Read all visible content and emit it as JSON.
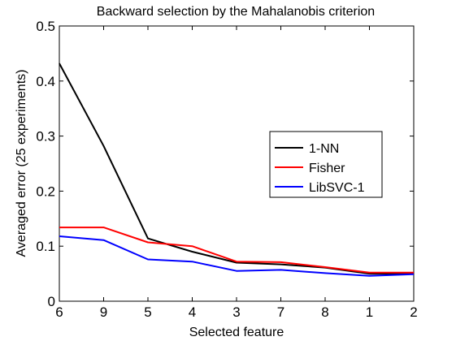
{
  "chart_data": {
    "type": "line",
    "title": "Backward selection by the Mahalanobis criterion",
    "xlabel": "Selected feature",
    "ylabel": "Averaged error (25 experiments)",
    "categories": [
      "6",
      "9",
      "5",
      "4",
      "3",
      "7",
      "8",
      "1",
      "2"
    ],
    "ylim": [
      0,
      0.5
    ],
    "yticks": [
      0,
      0.1,
      0.2,
      0.3,
      0.4,
      0.5
    ],
    "ytick_labels": [
      "0",
      "0.1",
      "0.2",
      "0.3",
      "0.4",
      "0.5"
    ],
    "grid": false,
    "legend_position": "right",
    "series": [
      {
        "name": "1-NN",
        "color": "#000000",
        "values": [
          0.432,
          0.282,
          0.114,
          0.09,
          0.07,
          0.067,
          0.061,
          0.05,
          0.05
        ]
      },
      {
        "name": "Fisher",
        "color": "#ff0000",
        "values": [
          0.134,
          0.134,
          0.107,
          0.1,
          0.072,
          0.071,
          0.062,
          0.052,
          0.052
        ]
      },
      {
        "name": "LibSVC-1",
        "color": "#0000ff",
        "values": [
          0.118,
          0.111,
          0.076,
          0.072,
          0.055,
          0.057,
          0.051,
          0.046,
          0.049
        ]
      }
    ]
  }
}
